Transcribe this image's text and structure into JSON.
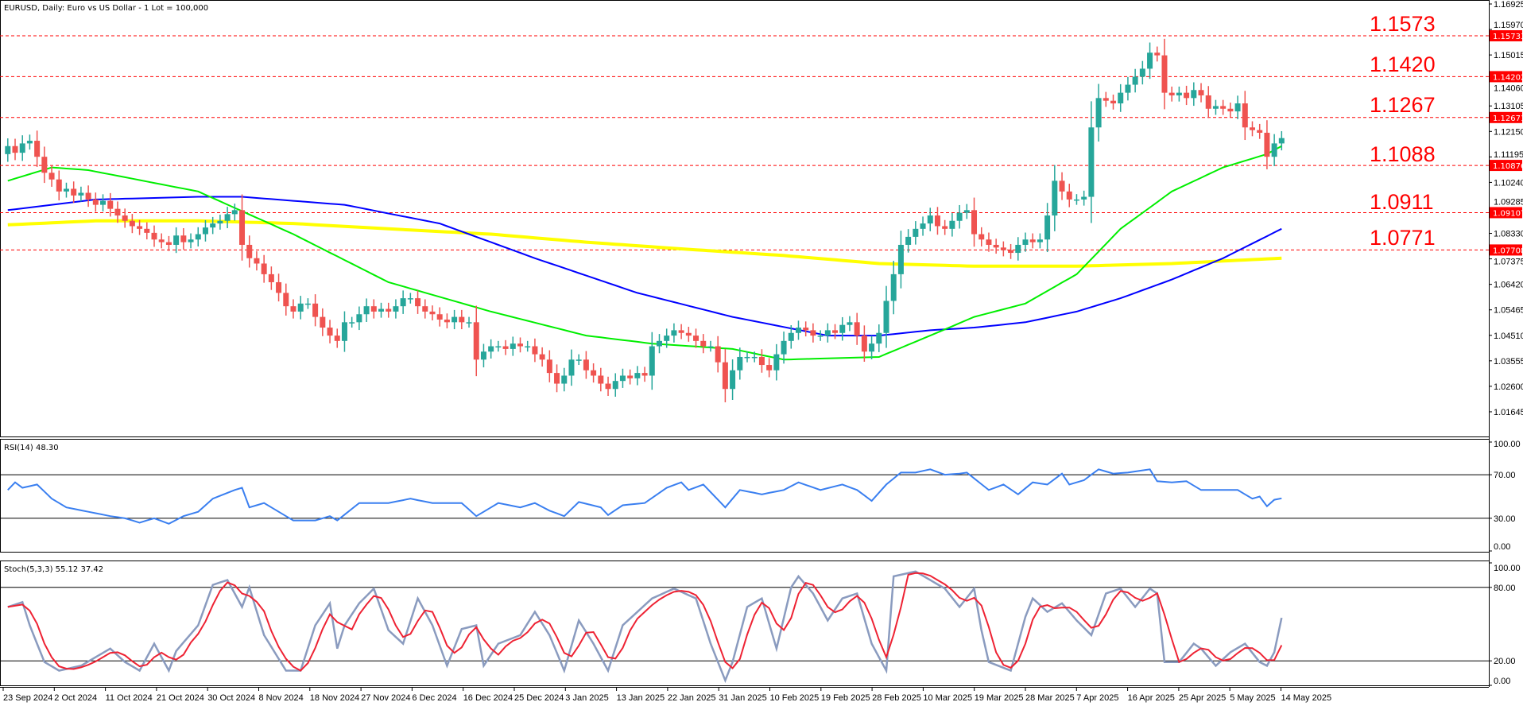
{
  "header": {
    "title": "EURUSD, Daily:  Euro vs US Dollar - 1 Lot = 100,000"
  },
  "colors": {
    "bull": "#26a69a",
    "bear": "#ef5350",
    "ma_fast": "#00ee00",
    "ma_mid": "#0000ff",
    "ma_slow": "#ffff00",
    "levels": "#ff0000",
    "rsi": "#3a7ff0",
    "stoch_main": "#8a9bbf",
    "stoch_signal": "#ee2233"
  },
  "chart_data": [
    {
      "type": "candlestick",
      "title": "EURUSD, Daily",
      "ylim": [
        1.012,
        1.1705
      ],
      "y_ticks": [
        "1.16925",
        "1.15970",
        "1.15015",
        "1.14060",
        "1.13105",
        "1.12150",
        "1.11195",
        "1.10240",
        "1.09285",
        "1.08330",
        "1.07375",
        "1.06420",
        "1.05465",
        "1.04510",
        "1.03555",
        "1.02600",
        "1.01645"
      ],
      "x_ticks": [
        "23 Sep 2024",
        "2 Oct 2024",
        "11 Oct 2024",
        "21 Oct 2024",
        "30 Oct 2024",
        "8 Nov 2024",
        "18 Nov 2024",
        "27 Nov 2024",
        "6 Dec 2024",
        "16 Dec 2024",
        "25 Dec 2024",
        "3 Jan 2025",
        "13 Jan 2025",
        "22 Jan 2025",
        "31 Jan 2025",
        "10 Feb 2025",
        "19 Feb 2025",
        "28 Feb 2025",
        "10 Mar 2025",
        "19 Mar 2025",
        "28 Mar 2025",
        "7 Apr 2025",
        "16 Apr 2025",
        "25 Apr 2025",
        "5 May 2025",
        "14 May 2025"
      ],
      "first_open": 1.113,
      "closes": [
        1.116,
        1.1135,
        1.117,
        1.118,
        1.112,
        1.106,
        1.1035,
        1.099,
        1.1,
        1.0975,
        1.0985,
        1.096,
        1.094,
        1.0955,
        1.0925,
        1.09,
        1.088,
        1.086,
        1.085,
        1.0835,
        1.081,
        1.08,
        1.079,
        1.0825,
        1.08,
        1.081,
        1.083,
        1.0855,
        1.087,
        1.088,
        1.0905,
        1.092,
        1.079,
        1.074,
        1.072,
        1.068,
        1.065,
        1.061,
        1.056,
        1.054,
        1.057,
        1.057,
        1.052,
        1.048,
        1.045,
        1.043,
        1.05,
        1.05,
        1.053,
        1.056,
        1.054,
        1.055,
        1.054,
        1.056,
        1.059,
        1.059,
        1.056,
        1.054,
        1.053,
        1.051,
        1.05,
        1.052,
        1.05,
        1.05,
        1.036,
        1.039,
        1.041,
        1.041,
        1.04,
        1.042,
        1.041,
        1.041,
        1.038,
        1.036,
        1.031,
        1.027,
        1.03,
        1.036,
        1.036,
        1.032,
        1.03,
        1.027,
        1.025,
        1.028,
        1.03,
        1.029,
        1.031,
        1.03,
        1.041,
        1.043,
        1.045,
        1.047,
        1.046,
        1.045,
        1.043,
        1.041,
        1.041,
        1.035,
        1.025,
        1.032,
        1.037,
        1.037,
        1.037,
        1.034,
        1.032,
        1.038,
        1.043,
        1.046,
        1.048,
        1.047,
        1.045,
        1.045,
        1.047,
        1.046,
        1.049,
        1.05,
        1.045,
        1.039,
        1.042,
        1.046,
        1.058,
        1.068,
        1.079,
        1.082,
        1.085,
        1.087,
        1.09,
        1.086,
        1.085,
        1.088,
        1.091,
        1.092,
        1.083,
        1.081,
        1.079,
        1.078,
        1.077,
        1.076,
        1.079,
        1.081,
        1.08,
        1.081,
        1.09,
        1.103,
        1.099,
        1.096,
        1.096,
        1.097,
        1.123,
        1.134,
        1.133,
        1.132,
        1.136,
        1.139,
        1.142,
        1.145,
        1.151,
        1.15,
        1.136,
        1.135,
        1.136,
        1.134,
        1.137,
        1.135,
        1.13,
        1.131,
        1.13,
        1.129,
        1.132,
        1.123,
        1.122,
        1.121,
        1.112,
        1.117,
        1.119
      ],
      "moving_averages": [
        {
          "color_key": "ma_fast",
          "points": [
            [
              0,
              1.103
            ],
            [
              6,
              1.108
            ],
            [
              11,
              1.107
            ],
            [
              26,
              1.099
            ],
            [
              39,
              1.083
            ],
            [
              52,
              1.065
            ],
            [
              66,
              1.054
            ],
            [
              79,
              1.045
            ],
            [
              88,
              1.042
            ],
            [
              99,
              1.04
            ],
            [
              106,
              1.036
            ],
            [
              119,
              1.037
            ],
            [
              126,
              1.045
            ],
            [
              132,
              1.052
            ],
            [
              139,
              1.057
            ],
            [
              146,
              1.068
            ],
            [
              152,
              1.085
            ],
            [
              159,
              1.099
            ],
            [
              166,
              1.108
            ],
            [
              172,
              1.113
            ],
            [
              174,
              1.116
            ]
          ]
        },
        {
          "color_key": "ma_mid",
          "points": [
            [
              0,
              1.092
            ],
            [
              12,
              1.096
            ],
            [
              26,
              1.097
            ],
            [
              32,
              1.097
            ],
            [
              46,
              1.094
            ],
            [
              59,
              1.087
            ],
            [
              72,
              1.074
            ],
            [
              86,
              1.061
            ],
            [
              99,
              1.052
            ],
            [
              112,
              1.045
            ],
            [
              119,
              1.045
            ],
            [
              126,
              1.047
            ],
            [
              132,
              1.048
            ],
            [
              139,
              1.05
            ],
            [
              146,
              1.054
            ],
            [
              152,
              1.059
            ],
            [
              159,
              1.066
            ],
            [
              166,
              1.074
            ],
            [
              174,
              1.085
            ]
          ]
        },
        {
          "color_key": "ma_slow",
          "points": [
            [
              0,
              1.0865
            ],
            [
              12,
              1.088
            ],
            [
              26,
              1.088
            ],
            [
              39,
              1.087
            ],
            [
              52,
              1.085
            ],
            [
              66,
              1.083
            ],
            [
              79,
              1.08
            ],
            [
              92,
              1.0775
            ],
            [
              106,
              1.075
            ],
            [
              119,
              1.072
            ],
            [
              132,
              1.071
            ],
            [
              146,
              1.071
            ],
            [
              159,
              1.072
            ],
            [
              174,
              1.074
            ]
          ]
        }
      ],
      "levels": [
        {
          "value": 1.15733,
          "tag": "1.15733",
          "label": "1.1573"
        },
        {
          "value": 1.14202,
          "tag": "1.14202",
          "label": "1.1420"
        },
        {
          "value": 1.12671,
          "tag": "1.12671",
          "label": "1.1267"
        },
        {
          "value": 1.10876,
          "tag": "1.10876",
          "label": "1.1088"
        },
        {
          "value": 1.09107,
          "tag": "1.09107",
          "label": "1.0911"
        },
        {
          "value": 1.07708,
          "tag": "1.07708",
          "label": "1.0771"
        }
      ]
    },
    {
      "type": "line",
      "title": "RSI(14) 48.30",
      "ylim": [
        0,
        100
      ],
      "y_ticks": [
        "100.00",
        "70.00",
        "30.00",
        "0.00"
      ],
      "levels": [
        70,
        30
      ],
      "points": [
        [
          0,
          56
        ],
        [
          1,
          63
        ],
        [
          2,
          58
        ],
        [
          4,
          61
        ],
        [
          6,
          48
        ],
        [
          8,
          40
        ],
        [
          11,
          36
        ],
        [
          14,
          32
        ],
        [
          16,
          30
        ],
        [
          18,
          26
        ],
        [
          20,
          30
        ],
        [
          22,
          25
        ],
        [
          24,
          32
        ],
        [
          26,
          36
        ],
        [
          28,
          48
        ],
        [
          31,
          56
        ],
        [
          32,
          58
        ],
        [
          33,
          40
        ],
        [
          35,
          44
        ],
        [
          38,
          32
        ],
        [
          39,
          28
        ],
        [
          42,
          28
        ],
        [
          44,
          32
        ],
        [
          45,
          28
        ],
        [
          48,
          44
        ],
        [
          52,
          44
        ],
        [
          55,
          48
        ],
        [
          58,
          44
        ],
        [
          62,
          44
        ],
        [
          64,
          32
        ],
        [
          67,
          44
        ],
        [
          70,
          40
        ],
        [
          72,
          44
        ],
        [
          74,
          37
        ],
        [
          76,
          32
        ],
        [
          78,
          45
        ],
        [
          81,
          40
        ],
        [
          82,
          33
        ],
        [
          84,
          42
        ],
        [
          87,
          44
        ],
        [
          90,
          58
        ],
        [
          92,
          63
        ],
        [
          93,
          56
        ],
        [
          95,
          61
        ],
        [
          98,
          40
        ],
        [
          100,
          56
        ],
        [
          103,
          52
        ],
        [
          106,
          56
        ],
        [
          108,
          63
        ],
        [
          111,
          56
        ],
        [
          114,
          61
        ],
        [
          116,
          56
        ],
        [
          118,
          46
        ],
        [
          120,
          61
        ],
        [
          122,
          72
        ],
        [
          124,
          72
        ],
        [
          126,
          75
        ],
        [
          128,
          70
        ],
        [
          130,
          71
        ],
        [
          131,
          72
        ],
        [
          134,
          56
        ],
        [
          136,
          61
        ],
        [
          138,
          52
        ],
        [
          140,
          63
        ],
        [
          142,
          61
        ],
        [
          144,
          71
        ],
        [
          145,
          61
        ],
        [
          147,
          65
        ],
        [
          149,
          75
        ],
        [
          151,
          71
        ],
        [
          153,
          72
        ],
        [
          156,
          75
        ],
        [
          157,
          64
        ],
        [
          159,
          63
        ],
        [
          161,
          64
        ],
        [
          163,
          56
        ],
        [
          166,
          56
        ],
        [
          168,
          56
        ],
        [
          170,
          48
        ],
        [
          171,
          50
        ],
        [
          172,
          41
        ],
        [
          173,
          47
        ],
        [
          174,
          48.3
        ]
      ]
    },
    {
      "type": "line",
      "title": "Stoch(5,3,3) 55.12 37.42",
      "ylim": [
        0,
        100
      ],
      "y_ticks": [
        "100.00",
        "80.00",
        "20.00",
        "0.00"
      ],
      "levels": [
        80,
        20
      ],
      "signal_period": 3,
      "points": [
        [
          0,
          64
        ],
        [
          2,
          68
        ],
        [
          3,
          49
        ],
        [
          5,
          19
        ],
        [
          7,
          12
        ],
        [
          10,
          16
        ],
        [
          12,
          23
        ],
        [
          14,
          30
        ],
        [
          16,
          19
        ],
        [
          18,
          12
        ],
        [
          20,
          34
        ],
        [
          22,
          12
        ],
        [
          23,
          28
        ],
        [
          26,
          49
        ],
        [
          28,
          82
        ],
        [
          30,
          86
        ],
        [
          32,
          64
        ],
        [
          33,
          80
        ],
        [
          35,
          41
        ],
        [
          38,
          12
        ],
        [
          40,
          12
        ],
        [
          42,
          49
        ],
        [
          44,
          67
        ],
        [
          45,
          30
        ],
        [
          46,
          49
        ],
        [
          48,
          67
        ],
        [
          50,
          79
        ],
        [
          52,
          45
        ],
        [
          54,
          34
        ],
        [
          56,
          71
        ],
        [
          58,
          49
        ],
        [
          60,
          16
        ],
        [
          62,
          46
        ],
        [
          64,
          49
        ],
        [
          65,
          16
        ],
        [
          67,
          34
        ],
        [
          70,
          41
        ],
        [
          72,
          60
        ],
        [
          74,
          41
        ],
        [
          76,
          12
        ],
        [
          78,
          53
        ],
        [
          80,
          34
        ],
        [
          82,
          12
        ],
        [
          84,
          49
        ],
        [
          86,
          60
        ],
        [
          88,
          71
        ],
        [
          91,
          79
        ],
        [
          94,
          71
        ],
        [
          96,
          34
        ],
        [
          98,
          4
        ],
        [
          99,
          19
        ],
        [
          101,
          64
        ],
        [
          103,
          71
        ],
        [
          105,
          30
        ],
        [
          107,
          80
        ],
        [
          108,
          89
        ],
        [
          110,
          75
        ],
        [
          112,
          53
        ],
        [
          114,
          71
        ],
        [
          116,
          75
        ],
        [
          118,
          34
        ],
        [
          120,
          12
        ],
        [
          121,
          89
        ],
        [
          124,
          93
        ],
        [
          126,
          86
        ],
        [
          128,
          79
        ],
        [
          130,
          64
        ],
        [
          132,
          79
        ],
        [
          133,
          45
        ],
        [
          134,
          19
        ],
        [
          137,
          12
        ],
        [
          139,
          56
        ],
        [
          140,
          71
        ],
        [
          142,
          60
        ],
        [
          144,
          67
        ],
        [
          146,
          53
        ],
        [
          148,
          41
        ],
        [
          150,
          75
        ],
        [
          152,
          79
        ],
        [
          154,
          64
        ],
        [
          156,
          79
        ],
        [
          157,
          75
        ],
        [
          158,
          19
        ],
        [
          160,
          19
        ],
        [
          162,
          34
        ],
        [
          163,
          30
        ],
        [
          165,
          16
        ],
        [
          167,
          27
        ],
        [
          169,
          34
        ],
        [
          171,
          19
        ],
        [
          172,
          16
        ],
        [
          173,
          27
        ],
        [
          174,
          55.12
        ]
      ]
    }
  ]
}
